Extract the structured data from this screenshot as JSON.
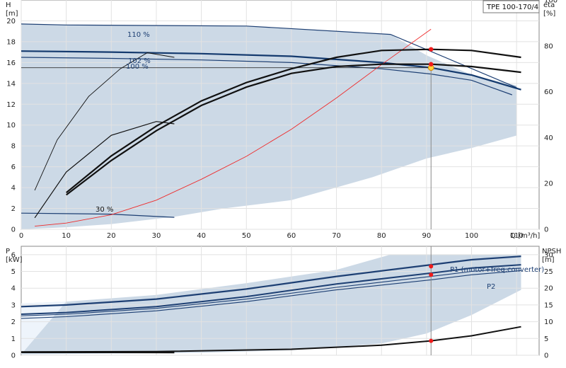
{
  "chart_data": [
    {
      "type": "line",
      "title": "TPE 100-170/4",
      "xlabel": "Q [m³/h]",
      "ylabel": "H",
      "ylabel_unit": "[m]",
      "y2label": "eta",
      "y2label_unit": "[%]",
      "xlim": [
        0,
        115
      ],
      "ylim": [
        0,
        22
      ],
      "y2lim": [
        0,
        100
      ],
      "x_ticks": [
        "0",
        "10",
        "20",
        "30",
        "40",
        "50",
        "60",
        "70",
        "80",
        "90",
        "100",
        "110"
      ],
      "y_ticks": [
        "0",
        "2",
        "4",
        "6",
        "8",
        "10",
        "12",
        "14",
        "16",
        "18",
        "20"
      ],
      "y2_ticks": [
        "0",
        "20",
        "40",
        "60",
        "80",
        "100"
      ],
      "grid": true,
      "operating_region": {
        "upper": [
          [
            0,
            19.7
          ],
          [
            10,
            19.6
          ],
          [
            50,
            19.5
          ],
          [
            82,
            18.7
          ],
          [
            90,
            16.7
          ],
          [
            100,
            14.8
          ],
          [
            110,
            13.8
          ]
        ],
        "lower": [
          [
            110,
            9.0
          ],
          [
            100,
            7.8
          ],
          [
            90,
            6.8
          ],
          [
            78,
            5.0
          ],
          [
            60,
            2.8
          ],
          [
            45,
            2.0
          ],
          [
            34,
            1.2
          ],
          [
            20,
            0.5
          ],
          [
            10,
            0.2
          ],
          [
            0,
            0
          ]
        ]
      },
      "series": [
        {
          "name": "110 %",
          "values": [
            [
              0,
              19.7
            ],
            [
              10,
              19.6
            ],
            [
              50,
              19.5
            ],
            [
              82,
              18.7
            ],
            [
              110,
              13.6
            ]
          ]
        },
        {
          "name": "102 %",
          "values": [
            [
              0,
              17.1
            ],
            [
              20,
              17.0
            ],
            [
              40,
              16.85
            ],
            [
              60,
              16.6
            ],
            [
              80,
              16.0
            ],
            [
              91,
              15.5
            ],
            [
              100,
              14.8
            ],
            [
              111,
              13.4
            ]
          ]
        },
        {
          "name": "100 %",
          "values": [
            [
              0,
              16.5
            ],
            [
              20,
              16.4
            ],
            [
              40,
              16.25
            ],
            [
              60,
              16.0
            ],
            [
              80,
              15.4
            ],
            [
              91,
              14.9
            ],
            [
              100,
              14.3
            ],
            [
              109,
              12.9
            ]
          ]
        },
        {
          "name": "30 %",
          "values": [
            [
              0,
              1.55
            ],
            [
              10,
              1.5
            ],
            [
              20,
              1.45
            ],
            [
              34,
              1.15
            ]
          ]
        },
        {
          "name": "",
          "values": [
            [
              0,
              15.5
            ],
            [
              91,
              15.5
            ]
          ]
        },
        {
          "name": "",
          "values": [
            [
              3,
              0.3
            ],
            [
              10,
              0.6
            ],
            [
              20,
              1.4
            ],
            [
              30,
              2.8
            ],
            [
              40,
              4.8
            ],
            [
              50,
              7.0
            ],
            [
              60,
              9.6
            ],
            [
              70,
              12.6
            ],
            [
              80,
              15.8
            ],
            [
              91,
              19.2
            ]
          ]
        }
      ],
      "eta_series": [
        {
          "name": "",
          "values": [
            [
              10,
              16
            ],
            [
              20,
              32
            ],
            [
              30,
              45
            ],
            [
              40,
              56
            ],
            [
              50,
              64
            ],
            [
              60,
              70
            ],
            [
              70,
              75
            ],
            [
              80,
              78
            ],
            [
              91,
              78.5
            ],
            [
              100,
              78
            ],
            [
              111,
              75
            ]
          ]
        },
        {
          "name": "",
          "values": [
            [
              10,
              15
            ],
            [
              20,
              30
            ],
            [
              30,
              43
            ],
            [
              40,
              54
            ],
            [
              50,
              62
            ],
            [
              60,
              68
            ],
            [
              70,
              71
            ],
            [
              80,
              72
            ],
            [
              91,
              72
            ],
            [
              100,
              71
            ],
            [
              111,
              68.5
            ]
          ]
        },
        {
          "name": "",
          "values": [
            [
              3,
              17
            ],
            [
              8,
              39
            ],
            [
              15,
              58
            ],
            [
              22,
              70
            ],
            [
              28,
              77
            ],
            [
              34,
              75
            ]
          ]
        },
        {
          "name": "",
          "values": [
            [
              3,
              5
            ],
            [
              10,
              25
            ],
            [
              20,
              41
            ],
            [
              30,
              47
            ],
            [
              34,
              46
            ]
          ]
        }
      ],
      "duty_point": {
        "q": 91,
        "h": 15.5
      }
    },
    {
      "type": "line",
      "ylabel": "P",
      "ylabel_unit": "[kW]",
      "y2label": "NPSH",
      "y2label_unit": "[m]",
      "xlim": [
        0,
        115
      ],
      "ylim": [
        0,
        6.5
      ],
      "y2lim": [
        0,
        32.5
      ],
      "x_ticks": [
        "10",
        "20",
        "30",
        "40",
        "50",
        "60",
        "70",
        "80",
        "90",
        "100",
        "110"
      ],
      "y_ticks": [
        "0",
        "1",
        "2",
        "3",
        "4",
        "5",
        "6"
      ],
      "y2_ticks": [
        "0",
        "5",
        "10",
        "15",
        "20",
        "25",
        "30"
      ],
      "grid": true,
      "operating_region": {
        "upper": [
          [
            0,
            3.1
          ],
          [
            10,
            3.2
          ],
          [
            30,
            3.6
          ],
          [
            50,
            4.3
          ],
          [
            70,
            5.1
          ],
          [
            82,
            6.0
          ],
          [
            111,
            6.0
          ]
        ],
        "lower": [
          [
            111,
            3.9
          ],
          [
            100,
            2.4
          ],
          [
            90,
            1.3
          ],
          [
            80,
            0.7
          ],
          [
            60,
            0.3
          ],
          [
            40,
            0.15
          ],
          [
            20,
            0.1
          ],
          [
            0,
            0.05
          ]
        ]
      },
      "series": [
        {
          "name": "P1 (motor+freq.converter)",
          "values": [
            [
              0,
              2.9
            ],
            [
              10,
              3.0
            ],
            [
              30,
              3.35
            ],
            [
              50,
              3.95
            ],
            [
              70,
              4.7
            ],
            [
              91,
              5.4
            ],
            [
              100,
              5.7
            ],
            [
              111,
              5.9
            ]
          ]
        },
        {
          "name": "P2",
          "values": [
            [
              0,
              2.45
            ],
            [
              10,
              2.55
            ],
            [
              30,
              2.9
            ],
            [
              50,
              3.5
            ],
            [
              70,
              4.25
            ],
            [
              91,
              4.9
            ],
            [
              100,
              5.2
            ],
            [
              111,
              5.4
            ]
          ]
        },
        {
          "name": "",
          "values": [
            [
              0,
              2.35
            ],
            [
              10,
              2.45
            ],
            [
              30,
              2.8
            ],
            [
              50,
              3.35
            ],
            [
              70,
              4.05
            ],
            [
              91,
              4.7
            ],
            [
              100,
              5.0
            ],
            [
              111,
              5.2
            ]
          ]
        },
        {
          "name": "",
          "values": [
            [
              0,
              2.2
            ],
            [
              10,
              2.3
            ],
            [
              30,
              2.65
            ],
            [
              50,
              3.2
            ],
            [
              70,
              3.9
            ],
            [
              91,
              4.5
            ],
            [
              100,
              4.8
            ],
            [
              111,
              5.05
            ]
          ]
        },
        {
          "name": "",
          "values": [
            [
              0,
              0.17
            ],
            [
              20,
              0.17
            ],
            [
              34,
              0.16
            ]
          ]
        }
      ],
      "npsh": [
        [
          0,
          1.0
        ],
        [
          30,
          1.1
        ],
        [
          60,
          1.8
        ],
        [
          80,
          3.0
        ],
        [
          91,
          4.3
        ],
        [
          100,
          5.8
        ],
        [
          111,
          8.5
        ]
      ],
      "duty_points": [
        {
          "q": 91,
          "p": 5.3
        },
        {
          "q": 91,
          "p": 4.8
        },
        {
          "q": 91,
          "npsh": 4.3
        }
      ]
    }
  ]
}
